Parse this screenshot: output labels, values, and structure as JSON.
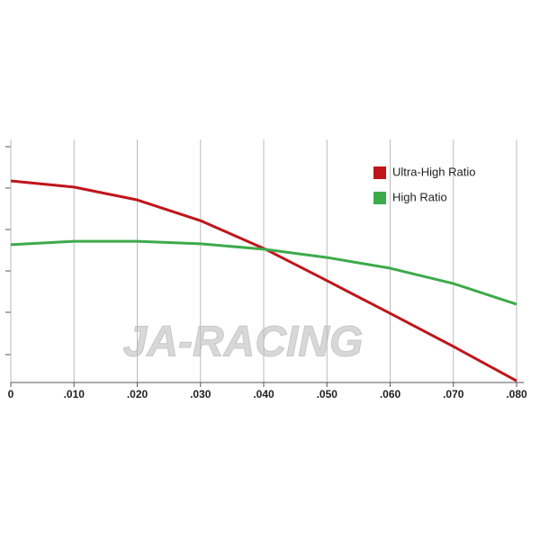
{
  "chart_data": {
    "type": "line",
    "watermark": "JA-RACING",
    "x": [
      0,
      0.01,
      0.02,
      0.03,
      0.04,
      0.05,
      0.06,
      0.07,
      0.08
    ],
    "series": [
      {
        "name": "Ultra-High Ratio",
        "color": "#c0151b",
        "values": [
          4.87,
          4.72,
          4.41,
          3.91,
          3.24,
          2.46,
          1.67,
          0.87,
          0.04
        ]
      },
      {
        "name": "High Ratio",
        "color": "#3daa4a",
        "values": [
          3.33,
          3.41,
          3.41,
          3.35,
          3.22,
          3.02,
          2.76,
          2.39,
          1.89
        ]
      }
    ],
    "xlim": [
      0,
      0.08
    ],
    "xticks": [
      0,
      {
        "value": 0.01,
        "label": ".010"
      },
      {
        "value": 0.02,
        "label": ".020"
      },
      {
        "value": 0.03,
        "label": ".030"
      },
      {
        "value": 0.04,
        "label": ".040"
      },
      {
        "value": 0.05,
        "label": ".050"
      },
      {
        "value": 0.06,
        "label": ".060"
      },
      {
        "value": 0.07,
        "label": ".070"
      },
      {
        "value": 0.08,
        "label": ".080"
      }
    ],
    "ylim": [
      0,
      6
    ],
    "grid": true,
    "legend": "upper-right"
  }
}
